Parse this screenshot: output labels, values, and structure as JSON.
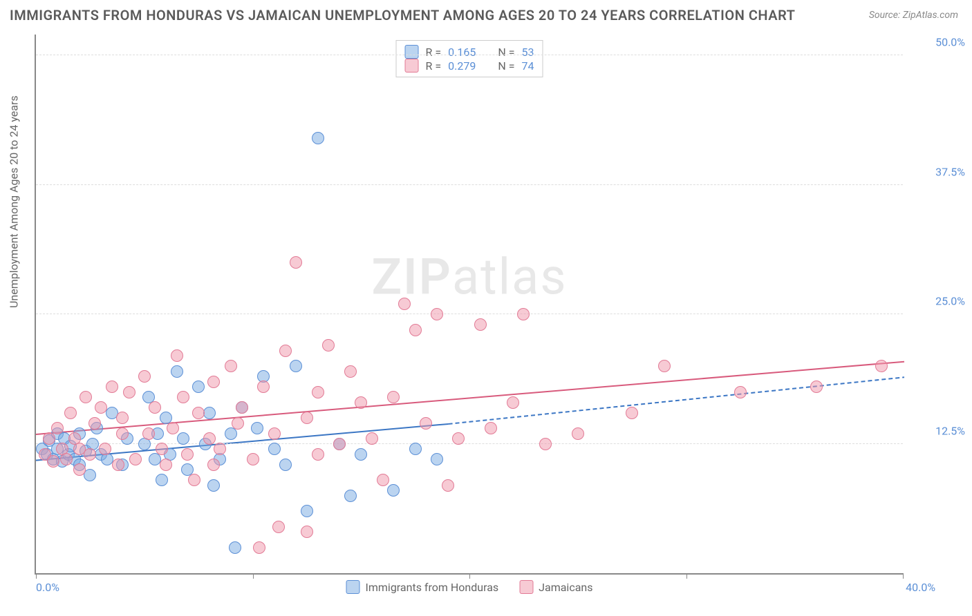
{
  "title": "IMMIGRANTS FROM HONDURAS VS JAMAICAN UNEMPLOYMENT AMONG AGES 20 TO 24 YEARS CORRELATION CHART",
  "source": "Source: ZipAtlas.com",
  "watermark": {
    "part1": "ZIP",
    "part2": "atlas"
  },
  "chart": {
    "type": "scatter",
    "xlim": [
      0,
      40
    ],
    "ylim": [
      0,
      52
    ],
    "x_ticks": [
      0,
      10,
      20,
      30,
      40
    ],
    "x_tick_labels": [
      "0.0%",
      "",
      "",
      "",
      "40.0%"
    ],
    "y_ticks": [
      12.5,
      25.0,
      37.5,
      50.0
    ],
    "y_tick_labels": [
      "12.5%",
      "25.0%",
      "37.5%",
      "50.0%"
    ],
    "y_axis_label": "Unemployment Among Ages 20 to 24 years",
    "background_color": "#ffffff",
    "grid_color": "#dddddd",
    "axis_color": "#888888",
    "tick_label_color": "#5b8fd6",
    "marker_size": 18,
    "series": [
      {
        "name": "Immigrants from Honduras",
        "color_fill": "rgba(120,170,225,0.5)",
        "color_stroke": "#5b8fd6",
        "R": "0.165",
        "N": "53",
        "trend": {
          "x1": 0,
          "y1": 11.0,
          "x2_solid": 19,
          "y2_solid": 14.5,
          "x2_dash": 40,
          "y2_dash": 19.0,
          "stroke": "#3b76c4",
          "width": 2
        },
        "points": [
          [
            0.3,
            12.0
          ],
          [
            0.5,
            11.5
          ],
          [
            0.6,
            12.8
          ],
          [
            0.8,
            11.0
          ],
          [
            1.0,
            12.0
          ],
          [
            1.0,
            13.5
          ],
          [
            1.2,
            10.8
          ],
          [
            1.3,
            13.0
          ],
          [
            1.5,
            11.5
          ],
          [
            1.6,
            12.3
          ],
          [
            1.8,
            11.0
          ],
          [
            2.0,
            13.5
          ],
          [
            2.0,
            10.5
          ],
          [
            2.3,
            11.8
          ],
          [
            2.5,
            9.5
          ],
          [
            2.6,
            12.5
          ],
          [
            2.8,
            14.0
          ],
          [
            3.0,
            11.5
          ],
          [
            3.3,
            11.0
          ],
          [
            3.5,
            15.5
          ],
          [
            4.0,
            10.5
          ],
          [
            4.2,
            13.0
          ],
          [
            5.0,
            12.5
          ],
          [
            5.2,
            17.0
          ],
          [
            5.5,
            11.0
          ],
          [
            5.6,
            13.5
          ],
          [
            5.8,
            9.0
          ],
          [
            6.0,
            15.0
          ],
          [
            6.2,
            11.5
          ],
          [
            6.5,
            19.5
          ],
          [
            6.8,
            13.0
          ],
          [
            7.0,
            10.0
          ],
          [
            7.5,
            18.0
          ],
          [
            7.8,
            12.5
          ],
          [
            8.0,
            15.5
          ],
          [
            8.2,
            8.5
          ],
          [
            8.5,
            11.0
          ],
          [
            9.0,
            13.5
          ],
          [
            9.2,
            2.5
          ],
          [
            9.5,
            16.0
          ],
          [
            10.2,
            14.0
          ],
          [
            10.5,
            19.0
          ],
          [
            11.0,
            12.0
          ],
          [
            11.5,
            10.5
          ],
          [
            12.0,
            20.0
          ],
          [
            12.5,
            6.0
          ],
          [
            13.0,
            42.0
          ],
          [
            14.0,
            12.5
          ],
          [
            14.5,
            7.5
          ],
          [
            15.0,
            11.5
          ],
          [
            16.5,
            8.0
          ],
          [
            17.5,
            12.0
          ],
          [
            18.5,
            11.0
          ]
        ]
      },
      {
        "name": "Jamaicans",
        "color_fill": "rgba(240,150,170,0.5)",
        "color_stroke": "#e27a95",
        "R": "0.279",
        "N": "74",
        "trend": {
          "x1": 0,
          "y1": 13.5,
          "x2_solid": 40,
          "y2_solid": 20.5,
          "stroke": "#d85a7c",
          "width": 2
        },
        "points": [
          [
            0.4,
            11.5
          ],
          [
            0.6,
            13.0
          ],
          [
            0.8,
            10.8
          ],
          [
            1.0,
            14.0
          ],
          [
            1.2,
            12.0
          ],
          [
            1.4,
            11.0
          ],
          [
            1.6,
            15.5
          ],
          [
            1.8,
            13.0
          ],
          [
            2.0,
            12.0
          ],
          [
            2.0,
            10.0
          ],
          [
            2.3,
            17.0
          ],
          [
            2.5,
            11.5
          ],
          [
            2.7,
            14.5
          ],
          [
            3.0,
            16.0
          ],
          [
            3.2,
            12.0
          ],
          [
            3.5,
            18.0
          ],
          [
            3.8,
            10.5
          ],
          [
            4.0,
            15.0
          ],
          [
            4.0,
            13.5
          ],
          [
            4.3,
            17.5
          ],
          [
            4.6,
            11.0
          ],
          [
            5.0,
            19.0
          ],
          [
            5.2,
            13.5
          ],
          [
            5.5,
            16.0
          ],
          [
            5.8,
            12.0
          ],
          [
            6.0,
            10.5
          ],
          [
            6.3,
            14.0
          ],
          [
            6.5,
            21.0
          ],
          [
            6.8,
            17.0
          ],
          [
            7.0,
            11.5
          ],
          [
            7.3,
            9.0
          ],
          [
            7.5,
            15.5
          ],
          [
            8.0,
            13.0
          ],
          [
            8.2,
            18.5
          ],
          [
            8.2,
            10.5
          ],
          [
            8.5,
            12.0
          ],
          [
            9.0,
            20.0
          ],
          [
            9.3,
            14.5
          ],
          [
            9.5,
            16.0
          ],
          [
            10.0,
            11.0
          ],
          [
            10.3,
            2.5
          ],
          [
            10.5,
            18.0
          ],
          [
            11.0,
            13.5
          ],
          [
            11.2,
            4.5
          ],
          [
            11.5,
            21.5
          ],
          [
            12.0,
            30.0
          ],
          [
            12.5,
            15.0
          ],
          [
            12.5,
            4.0
          ],
          [
            13.0,
            11.5
          ],
          [
            13.0,
            17.5
          ],
          [
            13.5,
            22.0
          ],
          [
            14.0,
            12.5
          ],
          [
            14.5,
            19.5
          ],
          [
            15.0,
            16.5
          ],
          [
            15.5,
            13.0
          ],
          [
            16.0,
            9.0
          ],
          [
            16.5,
            17.0
          ],
          [
            17.0,
            26.0
          ],
          [
            17.5,
            23.5
          ],
          [
            18.0,
            14.5
          ],
          [
            18.5,
            25.0
          ],
          [
            19.0,
            8.5
          ],
          [
            19.5,
            13.0
          ],
          [
            20.5,
            24.0
          ],
          [
            21.0,
            14.0
          ],
          [
            22.0,
            16.5
          ],
          [
            22.5,
            25.0
          ],
          [
            23.5,
            12.5
          ],
          [
            25.0,
            13.5
          ],
          [
            27.5,
            15.5
          ],
          [
            29.0,
            20.0
          ],
          [
            32.5,
            17.5
          ],
          [
            36.0,
            18.0
          ],
          [
            39.0,
            20.0
          ]
        ]
      }
    ]
  },
  "legend_top": {
    "rows": [
      {
        "swatch": "blue",
        "r_label": "R =",
        "r_value": "0.165",
        "n_label": "N =",
        "n_value": "53"
      },
      {
        "swatch": "pink",
        "r_label": "R =",
        "r_value": "0.279",
        "n_label": "N =",
        "n_value": "74"
      }
    ]
  },
  "legend_bottom": {
    "items": [
      {
        "swatch": "blue",
        "label": "Immigrants from Honduras"
      },
      {
        "swatch": "pink",
        "label": "Jamaicans"
      }
    ]
  }
}
